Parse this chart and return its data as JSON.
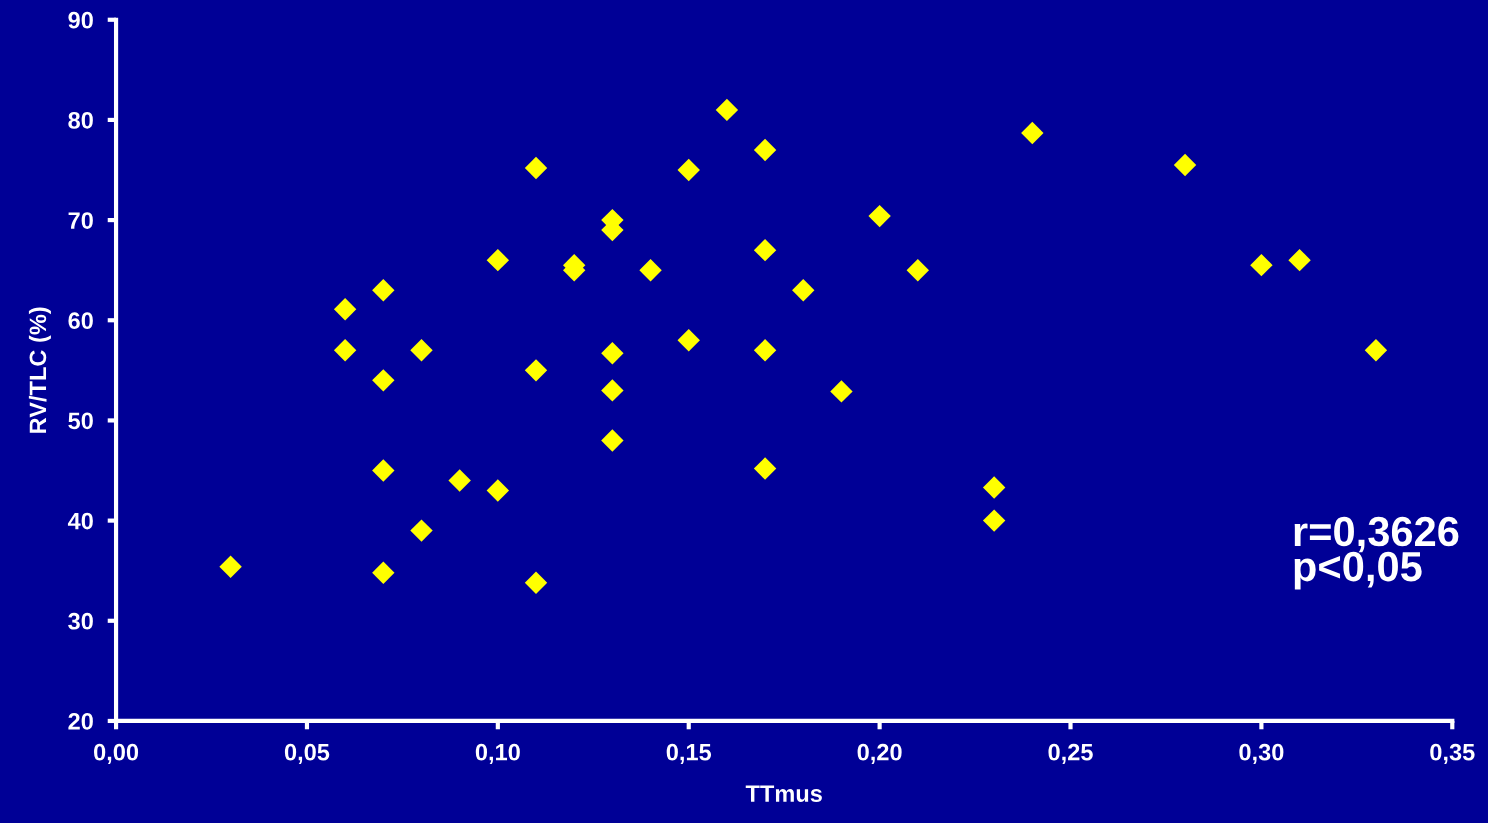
{
  "chart_data": {
    "type": "scatter",
    "xlabel": "TTmus",
    "ylabel": "RV/TLC (%)",
    "x": [
      0.03,
      0.06,
      0.06,
      0.07,
      0.07,
      0.07,
      0.07,
      0.08,
      0.08,
      0.09,
      0.1,
      0.1,
      0.11,
      0.11,
      0.11,
      0.12,
      0.12,
      0.13,
      0.13,
      0.13,
      0.13,
      0.13,
      0.14,
      0.15,
      0.15,
      0.16,
      0.17,
      0.17,
      0.17,
      0.17,
      0.18,
      0.19,
      0.2,
      0.21,
      0.23,
      0.23,
      0.24,
      0.28,
      0.3,
      0.31,
      0.33
    ],
    "series": [
      {
        "color": "#ffff00",
        "values": [
          35.4,
          61.1,
          57,
          63,
          54,
          45,
          34.8,
          57,
          39,
          44,
          66,
          43,
          75.2,
          55,
          33.8,
          65.5,
          65,
          70,
          69,
          56.7,
          53,
          48,
          65,
          75,
          58,
          81,
          77,
          67,
          57,
          45.2,
          63,
          52.9,
          70.4,
          65,
          43.3,
          40,
          78.7,
          75.5,
          65.5,
          66,
          57
        ]
      }
    ],
    "marker": "diamond",
    "grid": false,
    "legend": false,
    "xlim": [
      0,
      0.35
    ],
    "xticks": [
      {
        "value": 0,
        "label": "0,00"
      },
      {
        "value": 0.05,
        "label": "0,05"
      },
      {
        "value": 0.1,
        "label": "0,10"
      },
      {
        "value": 0.15,
        "label": "0,15"
      },
      {
        "value": 0.2,
        "label": "0,20"
      },
      {
        "value": 0.25,
        "label": "0,25"
      },
      {
        "value": 0.3,
        "label": "0,30"
      },
      {
        "value": 0.35,
        "label": "0,35"
      }
    ],
    "ylim": [
      20,
      90
    ],
    "yticks": [
      20,
      30,
      40,
      50,
      60,
      70,
      80,
      90
    ],
    "annotations": [
      "r=0,3626",
      "p<0,05"
    ]
  }
}
